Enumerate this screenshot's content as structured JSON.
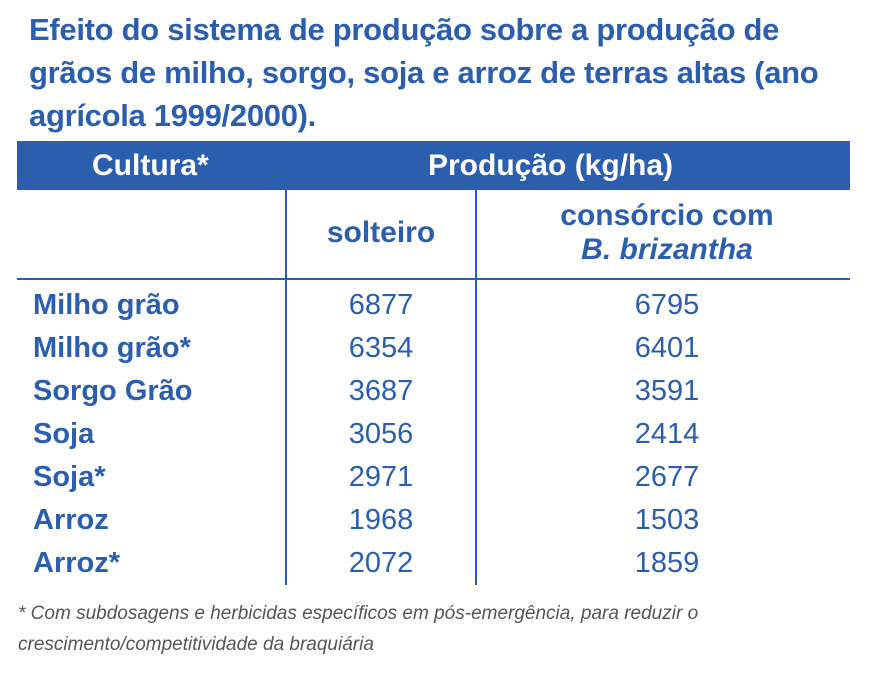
{
  "title": "Efeito do sistema de produção sobre a produção de grãos de milho, sorgo, soja e arroz de terras altas (ano agrícola 1999/2000).",
  "table": {
    "header": {
      "culture_label": "Cultura*",
      "production_label": "Produção (kg/ha)"
    },
    "subheader": {
      "col1": "solteiro",
      "col2_line1": "consórcio com",
      "col2_line2": "B. brizantha"
    },
    "rows": [
      {
        "culture": "Milho grão",
        "solteiro": "6877",
        "consorcio": "6795"
      },
      {
        "culture": "Milho grão*",
        "solteiro": "6354",
        "consorcio": "6401"
      },
      {
        "culture": "Sorgo Grão",
        "solteiro": "3687",
        "consorcio": "3591"
      },
      {
        "culture": "Soja",
        "solteiro": "3056",
        "consorcio": "2414"
      },
      {
        "culture": "Soja*",
        "solteiro": "2971",
        "consorcio": "2677"
      },
      {
        "culture": "Arroz",
        "solteiro": "1968",
        "consorcio": "1503"
      },
      {
        "culture": "Arroz*",
        "solteiro": "2072",
        "consorcio": "1859"
      }
    ]
  },
  "footnote": "* Com subdosagens e herbicidas específicos em pós-emergência, para reduzir o crescimento/competitividade da braquiária",
  "colors": {
    "accent": "#2b5fae",
    "footnote_text": "#555555"
  }
}
